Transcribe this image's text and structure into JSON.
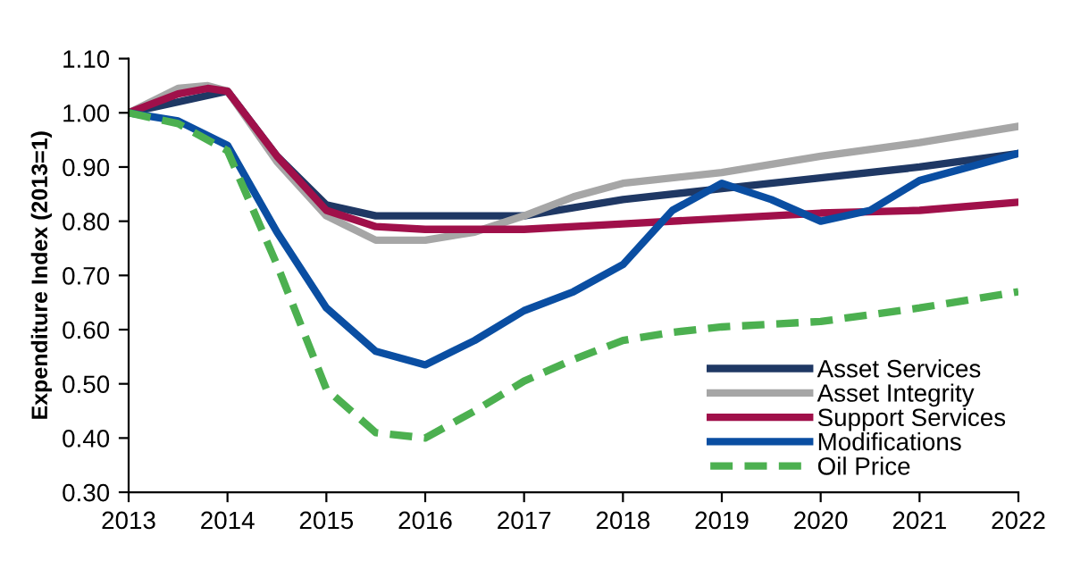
{
  "chart_data": {
    "type": "line",
    "ylabel": "Expenditure Index (2013=1)",
    "xlim": [
      2013,
      2022
    ],
    "xticks": [
      2013,
      2014,
      2015,
      2016,
      2017,
      2018,
      2019,
      2020,
      2021,
      2022
    ],
    "ylim": [
      0.3,
      1.1
    ],
    "yticks": [
      {
        "value": 0.3,
        "label": "0.30"
      },
      {
        "value": 0.4,
        "label": "0.40"
      },
      {
        "value": 0.5,
        "label": "0.50"
      },
      {
        "value": 0.6,
        "label": "0.60"
      },
      {
        "value": 0.7,
        "label": "0.70"
      },
      {
        "value": 0.8,
        "label": "0.80"
      },
      {
        "value": 0.9,
        "label": "0.90"
      },
      {
        "value": 1.0,
        "label": "1.00"
      },
      {
        "value": 1.1,
        "label": "1.10"
      }
    ],
    "grid": false,
    "legend": "bottom right",
    "marker": "none",
    "series": [
      {
        "name": "Asset Services",
        "color": "#1f3864",
        "x": [
          2013,
          2014,
          2014.5,
          2015,
          2015.5,
          2016,
          2016.5,
          2017,
          2018,
          2019,
          2020,
          2021,
          2022
        ],
        "values": [
          1.0,
          1.04,
          0.92,
          0.83,
          0.81,
          0.81,
          0.81,
          0.81,
          0.84,
          0.86,
          0.88,
          0.9,
          0.925
        ]
      },
      {
        "name": "Asset Integrity",
        "color": "#a6a6a6",
        "x": [
          2013,
          2013.5,
          2013.8,
          2014,
          2014.5,
          2015,
          2015.5,
          2016,
          2016.5,
          2017,
          2017.5,
          2018,
          2019,
          2020,
          2021,
          2022
        ],
        "values": [
          1.0,
          1.045,
          1.05,
          1.04,
          0.91,
          0.81,
          0.765,
          0.765,
          0.78,
          0.81,
          0.845,
          0.87,
          0.89,
          0.92,
          0.945,
          0.975
        ]
      },
      {
        "name": "Support Services",
        "color": "#a0104a",
        "x": [
          2013,
          2013.5,
          2013.8,
          2014,
          2014.5,
          2015,
          2015.5,
          2016,
          2017,
          2018,
          2019,
          2020,
          2021,
          2022
        ],
        "values": [
          1.0,
          1.035,
          1.045,
          1.04,
          0.92,
          0.82,
          0.79,
          0.785,
          0.785,
          0.795,
          0.805,
          0.815,
          0.82,
          0.835
        ]
      },
      {
        "name": "Modifications",
        "color": "#0a4ea2",
        "x": [
          2013,
          2013.5,
          2014,
          2014.5,
          2015,
          2015.5,
          2016,
          2016.5,
          2017,
          2017.5,
          2018,
          2018.5,
          2019,
          2019.5,
          2020,
          2020.5,
          2021,
          2021.5,
          2022
        ],
        "values": [
          1.0,
          0.985,
          0.94,
          0.78,
          0.64,
          0.56,
          0.535,
          0.58,
          0.635,
          0.67,
          0.72,
          0.82,
          0.87,
          0.84,
          0.8,
          0.82,
          0.875,
          0.9,
          0.925
        ]
      },
      {
        "name": "Oil Price",
        "color": "#4cb050",
        "line_style": "dashed",
        "x": [
          2013,
          2013.5,
          2014,
          2014.5,
          2015,
          2015.5,
          2016,
          2016.5,
          2017,
          2017.5,
          2018,
          2018.5,
          2019,
          2020,
          2021,
          2022
        ],
        "values": [
          1.0,
          0.98,
          0.93,
          0.72,
          0.49,
          0.41,
          0.4,
          0.45,
          0.505,
          0.545,
          0.58,
          0.595,
          0.605,
          0.615,
          0.64,
          0.67
        ]
      }
    ]
  }
}
